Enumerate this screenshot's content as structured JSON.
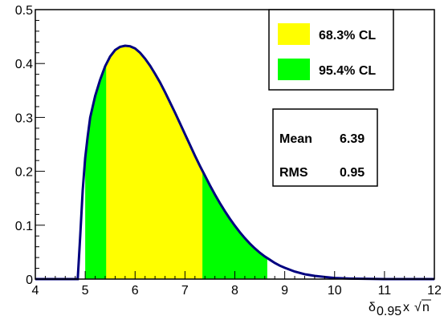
{
  "chart_data": {
    "type": "area",
    "title": "",
    "xlabel": {
      "symbol": "δ",
      "subscript": "0.95",
      "rest": "x",
      "sqrt_symbol": "√",
      "sqrt_arg": "n"
    },
    "ylabel": "",
    "xlim": [
      4,
      12
    ],
    "ylim": [
      0,
      0.5
    ],
    "x_ticks": [
      4,
      5,
      6,
      7,
      8,
      9,
      10,
      11,
      12
    ],
    "x_tick_labels": [
      "4",
      "5",
      "6",
      "7",
      "8",
      "9",
      "10",
      "11",
      "12"
    ],
    "y_ticks": [
      0,
      0.1,
      0.2,
      0.3,
      0.4,
      0.5
    ],
    "y_tick_labels": [
      "0",
      "0.1",
      "0.2",
      "0.3",
      "0.4",
      "0.5"
    ],
    "grid": false,
    "curve": {
      "color": "#000080",
      "x": [
        4.0,
        4.8,
        4.85,
        4.9,
        4.95,
        5.0,
        5.05,
        5.1,
        5.2,
        5.3,
        5.4,
        5.5,
        5.6,
        5.7,
        5.8,
        5.9,
        6.0,
        6.1,
        6.2,
        6.3,
        6.4,
        6.5,
        6.6,
        6.7,
        6.8,
        6.9,
        7.0,
        7.1,
        7.2,
        7.3,
        7.35,
        7.4,
        7.5,
        7.6,
        7.7,
        7.8,
        7.9,
        8.0,
        8.1,
        8.2,
        8.3,
        8.4,
        8.5,
        8.6,
        8.65,
        8.7,
        8.8,
        8.9,
        9.0,
        9.2,
        9.4,
        9.6,
        9.8,
        10.0,
        10.3,
        10.6,
        11.0,
        11.5,
        12.0
      ],
      "y": [
        0.0,
        0.0,
        0.0,
        0.08,
        0.165,
        0.225,
        0.265,
        0.3,
        0.34,
        0.37,
        0.395,
        0.413,
        0.425,
        0.431,
        0.433,
        0.432,
        0.428,
        0.42,
        0.409,
        0.396,
        0.381,
        0.365,
        0.347,
        0.328,
        0.309,
        0.289,
        0.269,
        0.249,
        0.229,
        0.21,
        0.201,
        0.192,
        0.174,
        0.157,
        0.141,
        0.126,
        0.112,
        0.099,
        0.087,
        0.076,
        0.066,
        0.057,
        0.049,
        0.042,
        0.039,
        0.036,
        0.03,
        0.025,
        0.021,
        0.014,
        0.009,
        0.006,
        0.004,
        0.002,
        0.001,
        0.0005,
        0.0,
        0.0,
        0.0
      ]
    },
    "bands": [
      {
        "name": "95.4% CL",
        "color": "#00ff00",
        "x_range": [
          5.0,
          8.65
        ]
      },
      {
        "name": "68.3% CL",
        "color": "#ffff00",
        "x_range": [
          5.42,
          7.35
        ]
      }
    ],
    "legend": {
      "position": "top-right",
      "entries": [
        {
          "label": "68.3% CL",
          "color": "#ffff00"
        },
        {
          "label": "95.4% CL",
          "color": "#00ff00"
        }
      ]
    },
    "stats": [
      {
        "label": "Mean",
        "value": "6.39"
      },
      {
        "label": "RMS",
        "value": "0.95"
      }
    ]
  }
}
